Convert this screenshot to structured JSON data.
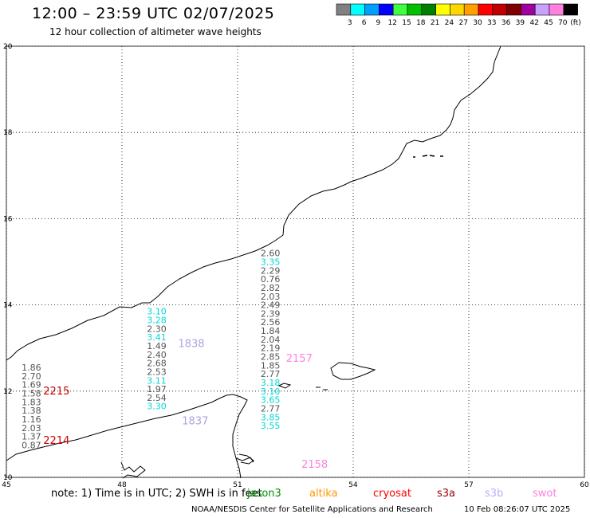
{
  "header": {
    "title": "12:00 – 23:59 UTC 02/07/2025",
    "subtitle": "12 hour collection of altimeter wave heights"
  },
  "legend": {
    "unit": "(ft)",
    "bins": [
      {
        "label": "3",
        "color": "#808080"
      },
      {
        "label": "6",
        "color": "#00ffff"
      },
      {
        "label": "9",
        "color": "#00a0ff"
      },
      {
        "label": "12",
        "color": "#0000ff"
      },
      {
        "label": "15",
        "color": "#40ff40"
      },
      {
        "label": "18",
        "color": "#00c000"
      },
      {
        "label": "21",
        "color": "#008000"
      },
      {
        "label": "24",
        "color": "#ffff00"
      },
      {
        "label": "27",
        "color": "#ffd700"
      },
      {
        "label": "30",
        "color": "#ffa000"
      },
      {
        "label": "33",
        "color": "#ff0000"
      },
      {
        "label": "36",
        "color": "#c00000"
      },
      {
        "label": "39",
        "color": "#800000"
      },
      {
        "label": "42",
        "color": "#a000a0"
      },
      {
        "label": "45",
        "color": "#c8a0ff"
      },
      {
        "label": "70",
        "color": "#ff80e0"
      },
      {
        "label": "",
        "color": "#000000"
      }
    ]
  },
  "map": {
    "lon_ticks": [
      "45",
      "48",
      "51",
      "54",
      "57",
      "60"
    ],
    "lat_ticks": [
      "20",
      "18",
      "16",
      "14",
      "12",
      "10"
    ],
    "tracks": [
      {
        "lon": 45.65,
        "labels": [
          "1.86",
          "2.70",
          "1.69",
          "1.58",
          "1.83",
          "1.38",
          "1.16",
          "2.03",
          "1.37",
          "0.87"
        ],
        "colors": [
          "#555555",
          "#555555",
          "#555555",
          "#555555",
          "#555555",
          "#555555",
          "#555555",
          "#555555",
          "#555555",
          "#555555"
        ],
        "lat_start": 12.55,
        "lat_step": 0.2
      },
      {
        "lon": 48.9,
        "labels": [
          "3.10",
          "3.28",
          "2.30",
          "3.41",
          "1.49",
          "2.40",
          "2.68",
          "2.53",
          "3.11",
          "1.97",
          "2.54",
          "3.30"
        ],
        "colors": [
          "#00d8d8",
          "#00d8d8",
          "#555555",
          "#00d8d8",
          "#555555",
          "#555555",
          "#555555",
          "#555555",
          "#00d8d8",
          "#555555",
          "#555555",
          "#00d8d8"
        ],
        "lat_start": 13.85,
        "lat_step": 0.2
      },
      {
        "lon": 51.85,
        "labels": [
          "2.60",
          "3.35",
          "2.29",
          "0.76",
          "2.82",
          "2.03",
          "2.49",
          "2.39",
          "2.56",
          "1.84",
          "2.04",
          "2.19",
          "2.85",
          "1.85",
          "2.77",
          "3.18",
          "3.10",
          "3.65",
          "2.77",
          "3.85",
          "3.55"
        ],
        "colors": [
          "#555555",
          "#00d8d8",
          "#555555",
          "#555555",
          "#555555",
          "#555555",
          "#555555",
          "#555555",
          "#555555",
          "#555555",
          "#555555",
          "#555555",
          "#555555",
          "#555555",
          "#555555",
          "#00d8d8",
          "#00d8d8",
          "#00d8d8",
          "#555555",
          "#00d8d8",
          "#00d8d8"
        ],
        "lat_start": 15.2,
        "lat_step": 0.2
      }
    ],
    "time_labels": [
      {
        "text": "2215",
        "color": "#cc0000",
        "lon": 46.3,
        "lat": 12.0
      },
      {
        "text": "2214",
        "color": "#cc0000",
        "lon": 46.3,
        "lat": 10.85
      },
      {
        "text": "1838",
        "color": "#b0a0e0",
        "lon": 49.8,
        "lat": 13.1
      },
      {
        "text": "1837",
        "color": "#b0a0e0",
        "lon": 49.9,
        "lat": 11.3
      },
      {
        "text": "2157",
        "color": "#ff80e0",
        "lon": 52.6,
        "lat": 12.75
      },
      {
        "text": "2158",
        "color": "#ff80e0",
        "lon": 53.0,
        "lat": 10.3
      }
    ]
  },
  "footer": {
    "note": "note:  1) Time is in UTC; 2) SWH is in feet",
    "credit": "NOAA/NESDIS Center for Satellite Applications and Research",
    "timestamp": "10 Feb 08:26:07 UTC 2025",
    "satellites": [
      {
        "name": "jason3",
        "color": "#009000"
      },
      {
        "name": "altika",
        "color": "#ff9900"
      },
      {
        "name": "cryosat",
        "color": "#ff0000"
      },
      {
        "name": "s3a",
        "color": "#990000"
      },
      {
        "name": "s3b",
        "color": "#c0a8ff"
      },
      {
        "name": "swot",
        "color": "#ff80e0"
      }
    ]
  }
}
